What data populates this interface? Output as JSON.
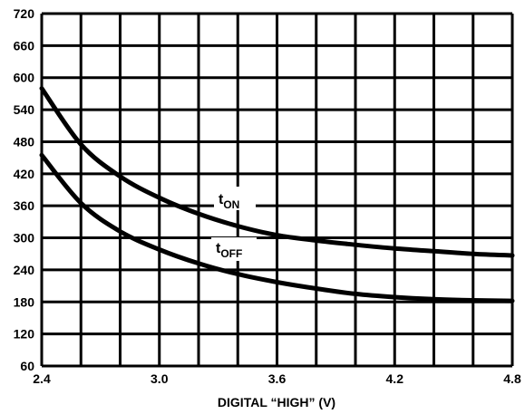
{
  "chart_data": {
    "type": "line",
    "title": "",
    "xlabel": "DIGITAL “HIGH” (V)",
    "ylabel": "",
    "xlim": [
      2.4,
      4.8
    ],
    "ylim": [
      60,
      720
    ],
    "x_ticks": [
      "2.4",
      "3.0",
      "3.6",
      "4.2",
      "4.8"
    ],
    "y_ticks": [
      "60",
      "120",
      "180",
      "240",
      "300",
      "360",
      "420",
      "480",
      "540",
      "600",
      "660",
      "720"
    ],
    "x_grid_step": 0.2,
    "grid": true,
    "series": [
      {
        "name": "tON",
        "label_main": "t",
        "label_sub": "ON",
        "x": [
          2.4,
          2.6,
          2.8,
          3.0,
          3.2,
          3.4,
          3.6,
          3.8,
          4.0,
          4.2,
          4.4,
          4.6,
          4.8
        ],
        "y": [
          580,
          475,
          415,
          375,
          345,
          322,
          305,
          295,
          287,
          280,
          275,
          270,
          267
        ]
      },
      {
        "name": "tOFF",
        "label_main": "t",
        "label_sub": "OFF",
        "x": [
          2.4,
          2.6,
          2.8,
          3.0,
          3.2,
          3.4,
          3.6,
          3.8,
          4.0,
          4.2,
          4.4,
          4.6,
          4.8
        ],
        "y": [
          455,
          365,
          312,
          278,
          252,
          232,
          217,
          205,
          195,
          189,
          185,
          183,
          182
        ]
      }
    ]
  }
}
